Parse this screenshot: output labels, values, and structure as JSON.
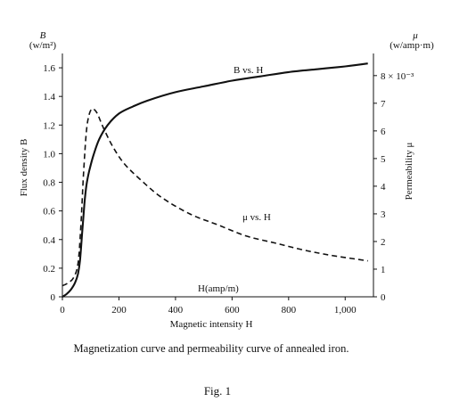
{
  "chart_data": {
    "type": "line",
    "caption": "Magnetization curve and permeability curve of annealed iron.",
    "figure_label": "Fig. 1",
    "xlabel": "Magnetic intensity H",
    "x_unit_label": "H(amp/m)",
    "xlim": [
      0,
      1100
    ],
    "x_ticks": [
      "0",
      "200",
      "400",
      "600",
      "800",
      "1,000"
    ],
    "left_axis": {
      "label": "Flux density B",
      "symbol": "B",
      "unit": "(w/m²)",
      "ylim": [
        0,
        1.7
      ],
      "ticks": [
        "0",
        "0.2",
        "0.4",
        "0.6",
        "0.8",
        "1.0",
        "1.2",
        "1.4",
        "1.6"
      ]
    },
    "right_axis": {
      "label": "Permeability μ",
      "symbol": "μ",
      "unit": "(w/amp·m)",
      "ylim": [
        0,
        8.8
      ],
      "ticks": [
        "0",
        "1",
        "2",
        "3",
        "4",
        "5",
        "6",
        "7",
        "8 × 10⁻³"
      ]
    },
    "series": [
      {
        "name": "B vs. H",
        "axis": "left",
        "style": "solid",
        "color": "#111111",
        "x": [
          0,
          15,
          30,
          45,
          55,
          62,
          70,
          78,
          85,
          95,
          110,
          130,
          160,
          200,
          250,
          300,
          400,
          500,
          600,
          700,
          800,
          900,
          1000,
          1080
        ],
        "y": [
          0,
          0.02,
          0.05,
          0.1,
          0.16,
          0.25,
          0.45,
          0.65,
          0.78,
          0.88,
          0.99,
          1.1,
          1.2,
          1.28,
          1.33,
          1.37,
          1.43,
          1.47,
          1.51,
          1.54,
          1.57,
          1.59,
          1.61,
          1.63
        ]
      },
      {
        "name": "μ vs. H",
        "axis": "right",
        "style": "dashed",
        "color": "#111111",
        "x": [
          0,
          20,
          40,
          55,
          65,
          75,
          85,
          95,
          105,
          115,
          125,
          135,
          150,
          180,
          220,
          280,
          350,
          450,
          550,
          650,
          750,
          850,
          950,
          1080
        ],
        "y": [
          0.4,
          0.5,
          0.7,
          1.2,
          2.5,
          4.5,
          6.0,
          6.6,
          6.8,
          6.75,
          6.6,
          6.35,
          6.0,
          5.4,
          4.8,
          4.2,
          3.6,
          3.0,
          2.6,
          2.2,
          1.95,
          1.7,
          1.5,
          1.3
        ]
      }
    ]
  }
}
